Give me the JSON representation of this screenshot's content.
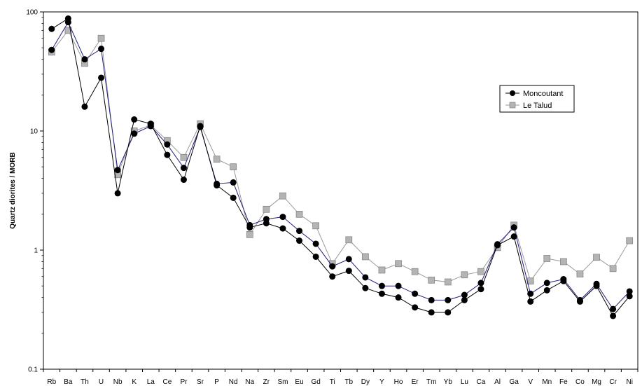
{
  "chart_data": {
    "type": "line",
    "yscale": "log",
    "ylim": [
      0.1,
      100
    ],
    "grid": false,
    "ylabel": "Quartz diorites / MORB",
    "yticks": [
      "0.1",
      "1",
      "10",
      "100"
    ],
    "legend_position": "right",
    "categories": [
      "Rb",
      "Ba",
      "Th",
      "U",
      "Nb",
      "K",
      "La",
      "Ce",
      "Pr",
      "Sr",
      "P",
      "Nd",
      "Na",
      "Zr",
      "Sm",
      "Eu",
      "Gd",
      "Ti",
      "Tb",
      "Dy",
      "Y",
      "Ho",
      "Er",
      "Tm",
      "Yb",
      "Lu",
      "Ca",
      "Al",
      "Ga",
      "V",
      "Mn",
      "Fe",
      "Co",
      "Mg",
      "Cr",
      "Ni"
    ],
    "series": [
      {
        "name": "Moncoutant",
        "color": "#000000",
        "line_color": "#000000",
        "marker": "circle",
        "values": [
          72,
          88,
          16,
          28,
          3.0,
          12.5,
          11.5,
          6.3,
          3.9,
          11.0,
          3.5,
          2.75,
          1.55,
          1.68,
          1.52,
          1.2,
          0.88,
          0.6,
          0.67,
          0.48,
          0.43,
          0.4,
          0.33,
          0.3,
          0.3,
          0.38,
          0.47,
          1.1,
          1.3,
          0.37,
          0.46,
          0.55,
          0.37,
          0.5,
          0.28,
          0.41
        ]
      },
      {
        "name": "",
        "color": "#000000",
        "line_color": "#1f1f7a",
        "marker": "circle",
        "values": [
          48,
          82,
          40,
          49,
          4.7,
          9.5,
          11.0,
          7.7,
          4.9,
          10.8,
          3.6,
          3.7,
          1.62,
          1.82,
          1.9,
          1.45,
          1.13,
          0.73,
          0.84,
          0.59,
          0.5,
          0.5,
          0.43,
          0.38,
          0.38,
          0.42,
          0.53,
          1.12,
          1.55,
          0.43,
          0.53,
          0.57,
          0.38,
          0.52,
          0.32,
          0.45
        ]
      },
      {
        "name": "Le Talud",
        "color": "#b4b4b4",
        "line_color": "#9a9a9a",
        "marker": "square",
        "values": [
          46,
          70,
          37,
          60,
          4.3,
          10.0,
          11.2,
          8.3,
          6.0,
          11.5,
          5.8,
          5.0,
          1.35,
          2.2,
          2.85,
          2.0,
          1.6,
          0.77,
          1.22,
          0.88,
          0.68,
          0.77,
          0.66,
          0.56,
          0.54,
          0.62,
          0.66,
          1.05,
          1.62,
          0.55,
          0.85,
          0.8,
          0.63,
          0.87,
          0.7,
          1.2
        ]
      }
    ]
  }
}
